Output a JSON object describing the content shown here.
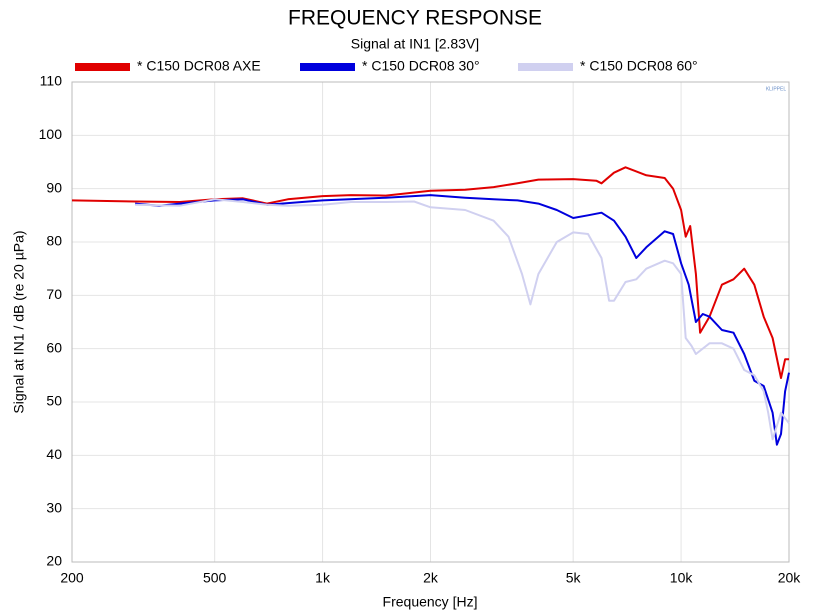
{
  "chart_data": {
    "type": "line",
    "title": "FREQUENCY RESPONSE",
    "subtitle": "Signal at IN1 [2.83V]",
    "x_label": "Frequency [Hz]",
    "y_label": "Signal at IN1 / dB (re 20 µPa)",
    "logo": "KLIPPEL",
    "x_scale": "log",
    "grid": true,
    "legend": "top",
    "xlim": [
      200,
      20000
    ],
    "ylim": [
      20,
      110
    ],
    "xticks": [
      200,
      500,
      {
        "value": 1000,
        "label": "1k"
      },
      {
        "value": 2000,
        "label": "2k"
      },
      {
        "value": 5000,
        "label": "5k"
      },
      {
        "value": 10000,
        "label": "10k"
      },
      {
        "value": 20000,
        "label": "20k"
      }
    ],
    "yticks": [
      20,
      30,
      40,
      50,
      60,
      70,
      80,
      90,
      100,
      110
    ],
    "series": [
      {
        "name": "* C150 DCR08  AXE",
        "color": "#e00000",
        "x": [
          200,
          300,
          400,
          500,
          600,
          700,
          800,
          1000,
          1200,
          1500,
          2000,
          2500,
          3000,
          3500,
          4000,
          5000,
          5800,
          6000,
          6500,
          7000,
          8000,
          9000,
          9500,
          10000,
          10300,
          10600,
          11000,
          11300,
          12000,
          13000,
          14000,
          15000,
          16000,
          17000,
          18000,
          19000,
          19500,
          20000
        ],
        "values": [
          87.8,
          87.6,
          87.5,
          88,
          88.2,
          87.2,
          88,
          88.6,
          88.8,
          88.7,
          89.6,
          89.8,
          90.3,
          91,
          91.7,
          91.8,
          91.5,
          91,
          93,
          94,
          92.5,
          92,
          90,
          86,
          81,
          83,
          74,
          63,
          66,
          72,
          73,
          75,
          72,
          66,
          62,
          54.5,
          58,
          58
        ]
      },
      {
        "name": "* C150 DCR08  30°",
        "color": "#0000dd",
        "x": [
          300,
          350,
          400,
          500,
          600,
          700,
          800,
          1000,
          1500,
          2000,
          2500,
          3000,
          3500,
          4000,
          4500,
          5000,
          5500,
          6000,
          6500,
          7000,
          7500,
          8000,
          9000,
          9500,
          10000,
          10500,
          11000,
          11500,
          12000,
          13000,
          14000,
          15000,
          16000,
          17000,
          18000,
          18500,
          19000,
          19500,
          20000
        ],
        "values": [
          87.2,
          86.8,
          87.2,
          87.8,
          88,
          87,
          87.3,
          87.8,
          88.3,
          88.8,
          88.3,
          88,
          87.8,
          87.2,
          86,
          84.5,
          85,
          85.5,
          84,
          81,
          77,
          79,
          82,
          81.5,
          76,
          72,
          65,
          66.5,
          66,
          63.5,
          63,
          59,
          54,
          53,
          48,
          42,
          44,
          52,
          55.5
        ]
      },
      {
        "name": "* C150 DCR08 60°",
        "color": "#d0d0f0",
        "x": [
          300,
          400,
          500,
          600,
          700,
          800,
          1000,
          1200,
          1500,
          1800,
          2000,
          2500,
          3000,
          3300,
          3600,
          3800,
          4000,
          4500,
          5000,
          5500,
          6000,
          6300,
          6500,
          7000,
          7500,
          8000,
          9000,
          9500,
          10000,
          10300,
          10700,
          11000,
          12000,
          13000,
          14000,
          15000,
          16000,
          17000,
          17500,
          18000,
          19000,
          20000
        ],
        "values": [
          87,
          86.8,
          88,
          87.5,
          87,
          86.8,
          87,
          87.5,
          87.5,
          87.6,
          86.5,
          86,
          84,
          81,
          74,
          68.3,
          74,
          80,
          81.8,
          81.5,
          77,
          69,
          69,
          72.5,
          73,
          75,
          76.5,
          76,
          74,
          62,
          60.5,
          59,
          61,
          61,
          60,
          56,
          55,
          52,
          48,
          43,
          48,
          46
        ]
      }
    ]
  }
}
